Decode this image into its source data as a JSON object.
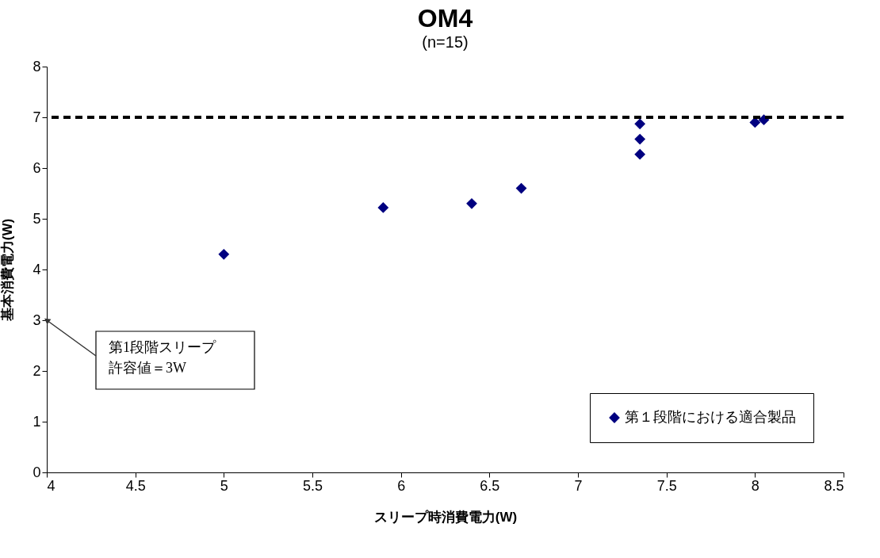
{
  "chart_data": {
    "type": "scatter",
    "title": "OM4",
    "subtitle": "(n=15)",
    "xlabel": "スリープ時消費電力(W)",
    "ylabel": "基本消費電力(W)",
    "series": [
      {
        "name": "第１段階における適合製品",
        "color": "#000080",
        "x": [
          5,
          5.9,
          6.4,
          6.68,
          7.35,
          7.35,
          7.35,
          8.0,
          8.05
        ],
        "values": [
          4.3,
          5.22,
          5.3,
          5.6,
          6.87,
          6.57,
          6.27,
          6.9,
          6.95
        ]
      }
    ],
    "marker": "diamond",
    "xlim": [
      4,
      8.5
    ],
    "xticks": [
      4,
      4.5,
      5,
      5.5,
      6,
      6.5,
      7,
      7.5,
      8,
      8.5
    ],
    "ylim": [
      0,
      8
    ],
    "yticks": [
      0,
      1,
      2,
      3,
      4,
      5,
      6,
      7,
      8
    ],
    "grid": false,
    "legend": "bottom right",
    "ref_lines": [
      {
        "axis": "y",
        "value": 7,
        "color": "#000000",
        "line_style": "dashed"
      }
    ],
    "annotations": [
      {
        "text": "第1段階スリープ許容値＝3W",
        "x": 4,
        "y": 3
      }
    ]
  }
}
